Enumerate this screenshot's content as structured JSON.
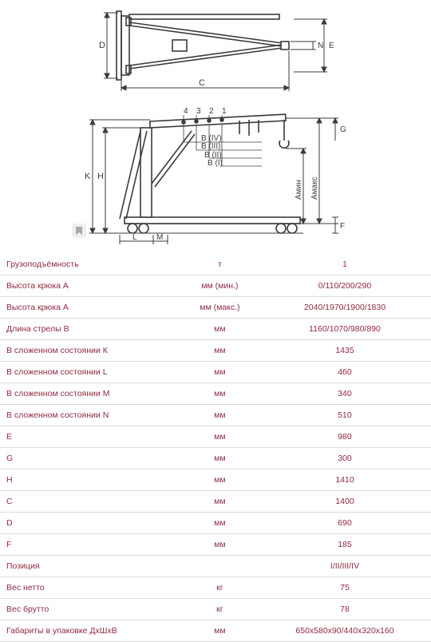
{
  "colors": {
    "line": "#4b4b4b",
    "diagram_stroke": "#3b3b3b",
    "text": "#8f2a3f",
    "border": "#dcdcdc",
    "bg": "#ffffff"
  },
  "diagram_top": {
    "labels": {
      "D": "D",
      "C": "C",
      "N": "N",
      "E": "E"
    }
  },
  "diagram_side": {
    "nums": [
      "1",
      "2",
      "3",
      "4"
    ],
    "B": {
      "b1": "B (I)",
      "b2": "B (II)",
      "b3": "B (III)",
      "b4": "B (IV)"
    },
    "labels": {
      "K": "K",
      "H": "H",
      "L": "L",
      "M": "M",
      "F": "F",
      "G": "G",
      "Amin": "Амин",
      "Amax": "Амакс"
    }
  },
  "table": {
    "columns": [
      "param",
      "unit",
      "value"
    ],
    "column_widths_pct": [
      42,
      18,
      40
    ],
    "cell_color": "#8f2a3f",
    "border_color": "#dcdcdc",
    "fontsize_pt": 8,
    "rows": [
      {
        "param": "Грузоподъёмность",
        "unit": "т",
        "value": "1"
      },
      {
        "param": "Высота крюка А",
        "unit": "мм (мин.)",
        "value": "0/110/200/290"
      },
      {
        "param": "Высота крюка А",
        "unit": "мм (макс.)",
        "value": "2040/1970/1900/1830"
      },
      {
        "param": "Длина стрелы В",
        "unit": "мм",
        "value": "1160/1070/980/890"
      },
      {
        "param": "В сложенном состоянии К",
        "unit": "мм",
        "value": "1435"
      },
      {
        "param": "В сложенном состоянии L",
        "unit": "мм",
        "value": "460"
      },
      {
        "param": "В сложенном состоянии M",
        "unit": "мм",
        "value": "340"
      },
      {
        "param": "В сложенном состоянии N",
        "unit": "мм",
        "value": "510"
      },
      {
        "param": "E",
        "unit": "мм",
        "value": "980"
      },
      {
        "param": "G",
        "unit": "мм",
        "value": "300"
      },
      {
        "param": "H",
        "unit": "мм",
        "value": "1410"
      },
      {
        "param": "C",
        "unit": "мм",
        "value": "1400"
      },
      {
        "param": "D",
        "unit": "мм",
        "value": "690"
      },
      {
        "param": "F",
        "unit": "мм",
        "value": "185"
      },
      {
        "param": "Позиция",
        "unit": "",
        "value": "I/II/III/IV"
      },
      {
        "param": "Вес нетто",
        "unit": "кг",
        "value": "75"
      },
      {
        "param": "Вес брутто",
        "unit": "кг",
        "value": "78"
      },
      {
        "param": "Габариты в упаковке ДхШхВ",
        "unit": "мм",
        "value": "650x580x90/440x320x160"
      }
    ]
  }
}
